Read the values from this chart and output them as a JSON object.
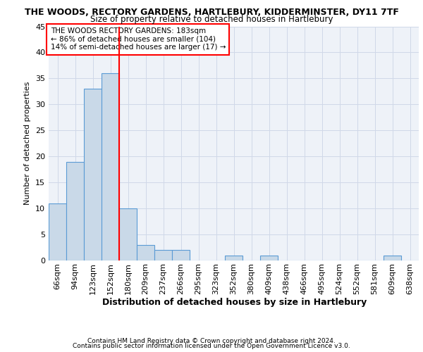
{
  "title": "THE WOODS, RECTORY GARDENS, HARTLEBURY, KIDDERMINSTER, DY11 7TF",
  "subtitle": "Size of property relative to detached houses in Hartlebury",
  "xlabel": "Distribution of detached houses by size in Hartlebury",
  "ylabel": "Number of detached properties",
  "categories": [
    "66sqm",
    "94sqm",
    "123sqm",
    "152sqm",
    "180sqm",
    "209sqm",
    "237sqm",
    "266sqm",
    "295sqm",
    "323sqm",
    "352sqm",
    "380sqm",
    "409sqm",
    "438sqm",
    "466sqm",
    "495sqm",
    "524sqm",
    "552sqm",
    "581sqm",
    "609sqm",
    "638sqm"
  ],
  "values": [
    11,
    19,
    33,
    36,
    10,
    3,
    2,
    2,
    0,
    0,
    1,
    0,
    1,
    0,
    0,
    0,
    0,
    0,
    0,
    1,
    0
  ],
  "bar_color": "#c9d9e8",
  "bar_edge_color": "#5b9bd5",
  "ylim": [
    0,
    45
  ],
  "yticks": [
    0,
    5,
    10,
    15,
    20,
    25,
    30,
    35,
    40,
    45
  ],
  "property_line_index": 4,
  "annotation_text": "THE WOODS RECTORY GARDENS: 183sqm\n← 86% of detached houses are smaller (104)\n14% of semi-detached houses are larger (17) →",
  "footer_line1": "Contains HM Land Registry data © Crown copyright and database right 2024.",
  "footer_line2": "Contains public sector information licensed under the Open Government Licence v3.0.",
  "background_color": "#eef2f8",
  "grid_color": "#d0d8e8",
  "title_fontsize": 9,
  "subtitle_fontsize": 8.5,
  "ylabel_fontsize": 8,
  "xlabel_fontsize": 9,
  "tick_fontsize": 8,
  "annotation_fontsize": 7.5,
  "footer_fontsize": 6.5
}
